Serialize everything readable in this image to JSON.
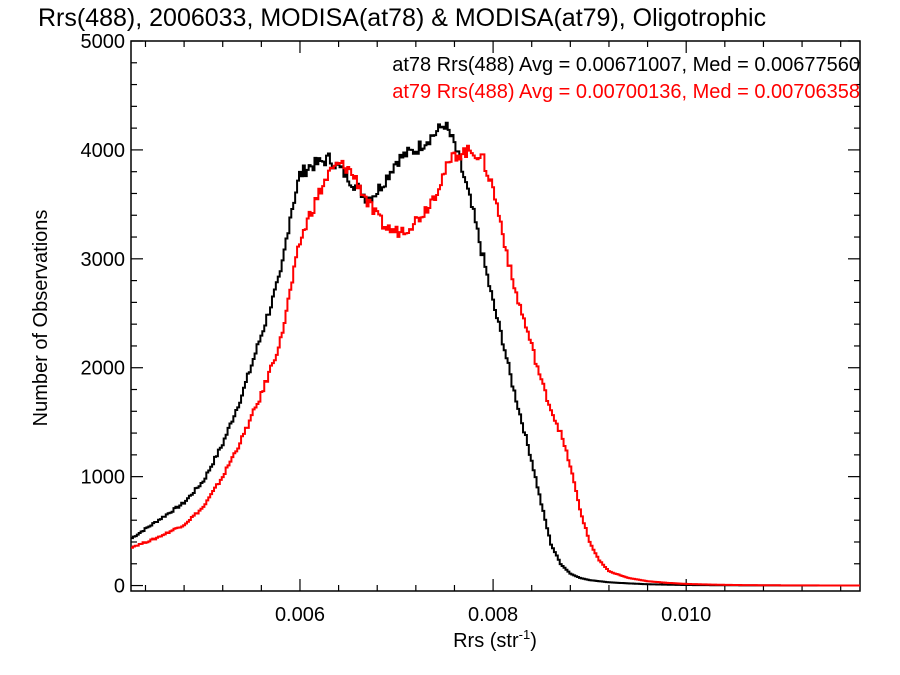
{
  "chart_data": {
    "type": "line",
    "title": "Rrs(488), 2006033, MODISA(at78) & MODISA(at79), Oligotrophic",
    "xlabel": "Rrs (str",
    "xlabel_sup": "-1",
    "xlabel_close": ")",
    "ylabel": "Number of Observations",
    "xlim": [
      0.00425,
      0.0118
    ],
    "ylim": [
      -50,
      5000
    ],
    "x_ticks": [
      0.006,
      0.008,
      0.01
    ],
    "x_tick_labels": [
      "0.006",
      "0.008",
      "0.010"
    ],
    "y_ticks": [
      0,
      1000,
      2000,
      3000,
      4000,
      5000
    ],
    "y_tick_labels": [
      "0",
      "1000",
      "2000",
      "3000",
      "4000",
      "5000"
    ],
    "legend_position": "top-right",
    "annotations": [
      {
        "text": "at78 Rrs(488) Avg = 0.00671007, Med = 0.00677560",
        "color": "#000000"
      },
      {
        "text": "at79 Rrs(488) Avg = 0.00700136, Med = 0.00706358",
        "color": "#ff0000"
      }
    ],
    "series": [
      {
        "color": "#000000",
        "x": [
          0.00425,
          0.0045,
          0.0048,
          0.005,
          0.0052,
          0.0054,
          0.0056,
          0.0058,
          0.0059,
          0.006,
          0.0061,
          0.0062,
          0.0063,
          0.0064,
          0.0065,
          0.0066,
          0.0067,
          0.0068,
          0.0069,
          0.007,
          0.0071,
          0.0072,
          0.0073,
          0.0074,
          0.0075,
          0.0076,
          0.0077,
          0.0078,
          0.0079,
          0.008,
          0.0081,
          0.0082,
          0.0083,
          0.0084,
          0.0085,
          0.0086,
          0.0087,
          0.0088,
          0.0089,
          0.009,
          0.0091,
          0.0092,
          0.0094,
          0.0096,
          0.0098,
          0.01,
          0.0103,
          0.0106,
          0.011,
          0.0114,
          0.0118
        ],
        "y": [
          430,
          580,
          760,
          960,
          1300,
          1750,
          2300,
          2850,
          3400,
          3770,
          3850,
          3880,
          3920,
          3840,
          3750,
          3650,
          3550,
          3620,
          3750,
          3900,
          3960,
          4000,
          4080,
          4150,
          4240,
          4050,
          3750,
          3400,
          3000,
          2600,
          2250,
          1850,
          1500,
          1150,
          750,
          380,
          200,
          110,
          70,
          50,
          40,
          30,
          20,
          12,
          8,
          5,
          3,
          2,
          1,
          0,
          0
        ]
      },
      {
        "color": "#ff0000",
        "x": [
          0.00425,
          0.0045,
          0.0048,
          0.005,
          0.0052,
          0.0054,
          0.0056,
          0.0058,
          0.0059,
          0.006,
          0.0061,
          0.0062,
          0.0063,
          0.0064,
          0.0065,
          0.0066,
          0.0067,
          0.0068,
          0.0069,
          0.007,
          0.0071,
          0.0072,
          0.0073,
          0.0074,
          0.0075,
          0.0076,
          0.0077,
          0.0078,
          0.0079,
          0.008,
          0.0081,
          0.0082,
          0.0083,
          0.0084,
          0.0085,
          0.0086,
          0.0087,
          0.0088,
          0.0089,
          0.009,
          0.0091,
          0.0092,
          0.0094,
          0.0096,
          0.0098,
          0.01,
          0.0103,
          0.0106,
          0.011,
          0.0114,
          0.0118
        ],
        "y": [
          350,
          430,
          560,
          720,
          1000,
          1350,
          1750,
          2250,
          2700,
          3150,
          3400,
          3600,
          3780,
          3870,
          3830,
          3700,
          3520,
          3380,
          3280,
          3250,
          3280,
          3350,
          3450,
          3600,
          3800,
          3950,
          3980,
          3990,
          3900,
          3650,
          3250,
          2800,
          2500,
          2200,
          1880,
          1620,
          1400,
          1100,
          700,
          400,
          230,
          130,
          70,
          40,
          25,
          15,
          8,
          4,
          2,
          1,
          0
        ]
      }
    ]
  }
}
